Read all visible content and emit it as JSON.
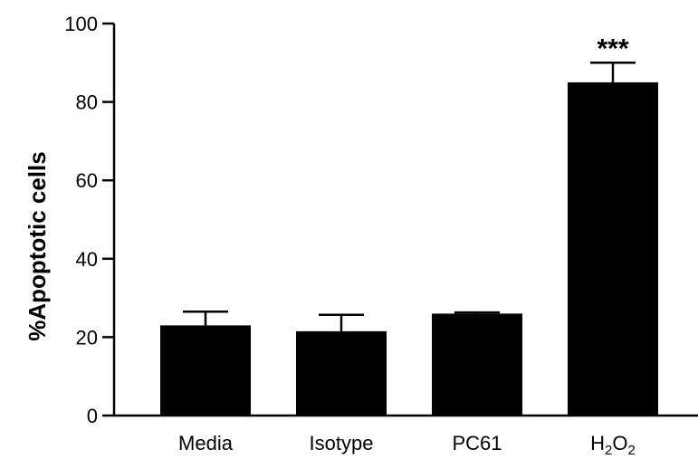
{
  "chart_data": {
    "type": "bar",
    "title": "",
    "xlabel": "",
    "ylabel": "%Apoptotic cells",
    "ylim": [
      0,
      100
    ],
    "yticks": [
      "0",
      "20",
      "40",
      "60",
      "80",
      "100"
    ],
    "categories": [
      {
        "base": "Media",
        "sub1": "",
        "mid": "",
        "sub2": ""
      },
      {
        "base": "Isotype",
        "sub1": "",
        "mid": "",
        "sub2": ""
      },
      {
        "base": "PC61",
        "sub1": "",
        "mid": "",
        "sub2": ""
      },
      {
        "base": "H",
        "sub1": "2",
        "mid": "O",
        "sub2": "2"
      }
    ],
    "values": [
      23,
      21.5,
      26,
      85
    ],
    "errors": [
      3.5,
      4.2,
      0.3,
      5
    ],
    "annotations": [
      "",
      "",
      "",
      "***"
    ],
    "bar_color": "#000000",
    "grid": false,
    "legend": "none"
  }
}
